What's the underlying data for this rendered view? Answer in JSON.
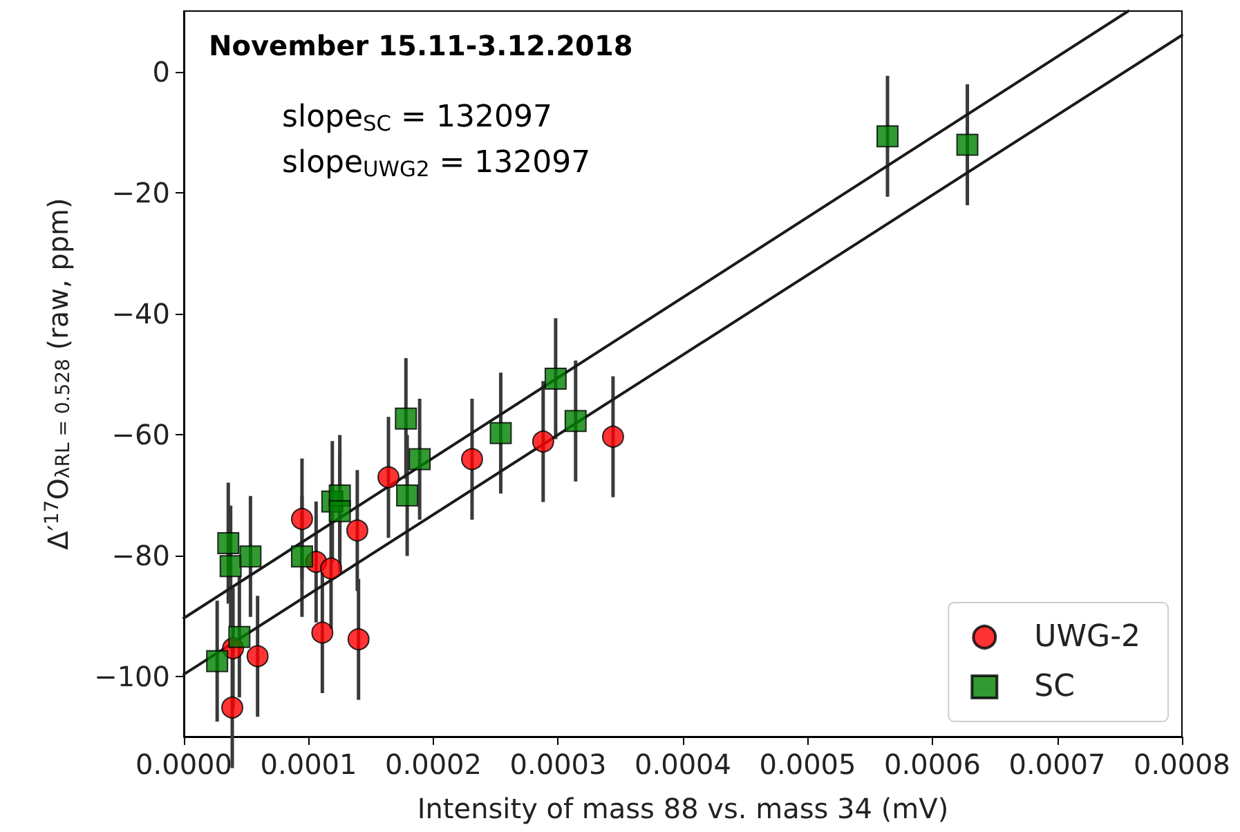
{
  "chart_data": {
    "type": "scatter",
    "title": "November 15.11-3.12.2018",
    "xlabel": "Intensity of mass 88 vs. mass 34 (mV)",
    "ylabel": "Δ′$^{17}$O$_{λRL = 0.528}$ (raw, ppm)",
    "annotations": [
      "slope$_{SC}$ = 132097",
      "slope$_{UWG2}$ = 132097"
    ],
    "xlim": [
      0,
      0.0008
    ],
    "xticks": [
      {
        "value": 0,
        "label": "0.0000"
      },
      {
        "value": 0.0001,
        "label": "0.0001"
      },
      {
        "value": 0.0002,
        "label": "0.0002"
      },
      {
        "value": 0.0003,
        "label": "0.0003"
      },
      {
        "value": 0.0004,
        "label": "0.0004"
      },
      {
        "value": 0.0005,
        "label": "0.0005"
      },
      {
        "value": 0.0006,
        "label": "0.0006"
      },
      {
        "value": 0.0007,
        "label": "0.0007"
      },
      {
        "value": 0.0008,
        "label": "0.0008"
      }
    ],
    "ylim": [
      -110,
      10
    ],
    "yticks": [
      {
        "value": -100,
        "label": "−100"
      },
      {
        "value": -80,
        "label": "−80"
      },
      {
        "value": -60,
        "label": "−60"
      },
      {
        "value": -40,
        "label": "−40"
      },
      {
        "value": -20,
        "label": "−20"
      },
      0
    ],
    "grid": false,
    "legend": "bottom right",
    "series": [
      {
        "name": "UWG-2",
        "marker": "circle",
        "color": "#ff0000",
        "x": [
          3.88e-05,
          3.94e-05,
          5.91e-05,
          9.47e-05,
          0.000106,
          0.000111,
          0.000118,
          0.000139,
          0.00014,
          0.000164,
          0.000231,
          0.000288,
          0.000344
        ],
        "values": [
          -105.2,
          -95.4,
          -96.7,
          -74.0,
          -81.1,
          -92.8,
          -82.2,
          -75.9,
          -93.9,
          -67.1,
          -64.1,
          -61.2,
          -60.4
        ],
        "errors": [
          10,
          10,
          10,
          10,
          10,
          10,
          10,
          10,
          10,
          10,
          10,
          10,
          10
        ]
      },
      {
        "name": "SC",
        "marker": "square",
        "color": "#008000",
        "x": [
          2.67e-05,
          3.56e-05,
          3.75e-05,
          4.45e-05,
          5.34e-05,
          9.47e-05,
          0.000119,
          0.000125,
          0.000125,
          0.000178,
          0.000179,
          0.000189,
          0.000254,
          0.000298,
          0.000314,
          0.000564,
          0.000628
        ],
        "values": [
          -97.5,
          -78.0,
          -81.8,
          -93.5,
          -80.2,
          -80.2,
          -71.1,
          -70.1,
          -72.7,
          -57.4,
          -70.1,
          -64.1,
          -59.8,
          -50.8,
          -57.8,
          -10.7,
          -12.1
        ],
        "errors": [
          10,
          10,
          10,
          10,
          10,
          10,
          10,
          10,
          10,
          10,
          10,
          10,
          10,
          10,
          10,
          10,
          10
        ]
      },
      {
        "type": "line",
        "marker": "none",
        "line_style": "solid",
        "color": "#1a1a1a",
        "x": [
          0,
          0.000757
        ],
        "values": [
          -90.4,
          10
        ]
      },
      {
        "type": "line",
        "marker": "none",
        "line_style": "solid",
        "color": "#1a1a1a",
        "x": [
          0,
          0.0008
        ],
        "values": [
          -99.7,
          6.0
        ]
      }
    ]
  }
}
